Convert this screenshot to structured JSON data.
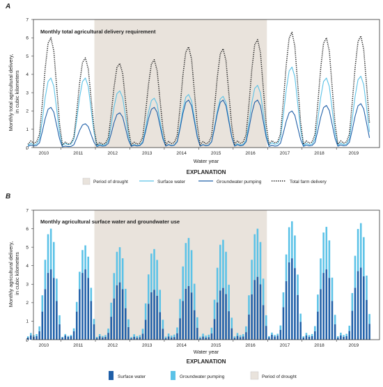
{
  "colors": {
    "drought": "#e9e3dc",
    "surface_water_line": "#5bc2e7",
    "groundwater_line": "#1f5fa8",
    "total_line": "#111111",
    "bar_surface_water": "#1f5fa8",
    "bar_groundwater": "#5bc2e7"
  },
  "chart_data": [
    {
      "panel_letter": "A",
      "type": "line",
      "title": "Monthly total agricultural delivery requirement",
      "xlabel": "Water year",
      "ylabel_lines": [
        "Monthly total agricultural delivery,",
        "in cubic kilometers"
      ],
      "ylim": [
        0,
        7
      ],
      "yticks": [
        0,
        1,
        2,
        3,
        4,
        5,
        6,
        7
      ],
      "x_tick_labels": [
        "2010",
        "2011",
        "2012",
        "2013",
        "2014",
        "2015",
        "2016",
        "2017",
        "2018",
        "2019"
      ],
      "grid": false,
      "drought_period": {
        "start_year": 2012,
        "end_year": 2016
      },
      "legend_title": "EXPLANATION",
      "legend": [
        {
          "label": "Period of drought",
          "kind": "patch"
        },
        {
          "label": "Surface water",
          "kind": "line"
        },
        {
          "label": "Groundwater pumping",
          "kind": "line"
        },
        {
          "label": "Total farm delivery",
          "kind": "dotted"
        }
      ],
      "series": [
        {
          "name": "Surface water",
          "annual_peaks": [
            3.8,
            3.8,
            3.1,
            2.7,
            2.9,
            2.8,
            3.4,
            4.4,
            3.8,
            3.9
          ]
        },
        {
          "name": "Groundwater pumping",
          "annual_peaks": [
            2.2,
            1.3,
            1.9,
            2.2,
            2.6,
            2.6,
            2.6,
            2.0,
            2.3,
            2.4
          ]
        },
        {
          "name": "Total farm delivery",
          "annual_peaks": [
            6.0,
            4.9,
            4.6,
            4.8,
            5.5,
            5.4,
            5.9,
            6.3,
            6.0,
            6.1
          ]
        }
      ]
    },
    {
      "panel_letter": "B",
      "type": "bar",
      "stacked": true,
      "title": "Monthly agricultural surface water and groundwater use",
      "xlabel": "Water year",
      "ylabel_lines": [
        "Monthly agricultural delivery,",
        "in cubic kilometers"
      ],
      "ylim": [
        0,
        7
      ],
      "yticks": [
        0,
        1,
        2,
        3,
        4,
        5,
        6,
        7
      ],
      "x_tick_labels": [
        "2010",
        "2011",
        "2012",
        "2013",
        "2014",
        "2015",
        "2016",
        "2017",
        "2018",
        "2019"
      ],
      "grid": false,
      "drought_period": {
        "start_year": 2012,
        "end_year": 2016
      },
      "legend_title": "EXPLANATION",
      "legend": [
        {
          "label": "Surface water",
          "kind": "bar_dark"
        },
        {
          "label": "Groundwater pumping",
          "kind": "bar_light"
        },
        {
          "label": "Period of drought",
          "kind": "patch"
        }
      ],
      "series": [
        {
          "name": "Surface water",
          "annual_peaks": [
            3.8,
            3.8,
            3.1,
            2.7,
            2.9,
            2.8,
            3.4,
            4.4,
            3.8,
            3.9
          ]
        },
        {
          "name": "Groundwater pumping",
          "annual_peaks": [
            2.2,
            1.3,
            1.9,
            2.2,
            2.6,
            2.6,
            2.6,
            2.0,
            2.3,
            2.4
          ]
        }
      ],
      "total_annual_peaks": [
        6.0,
        4.9,
        4.6,
        4.8,
        5.5,
        5.4,
        5.9,
        6.3,
        6.0,
        6.1
      ]
    }
  ]
}
